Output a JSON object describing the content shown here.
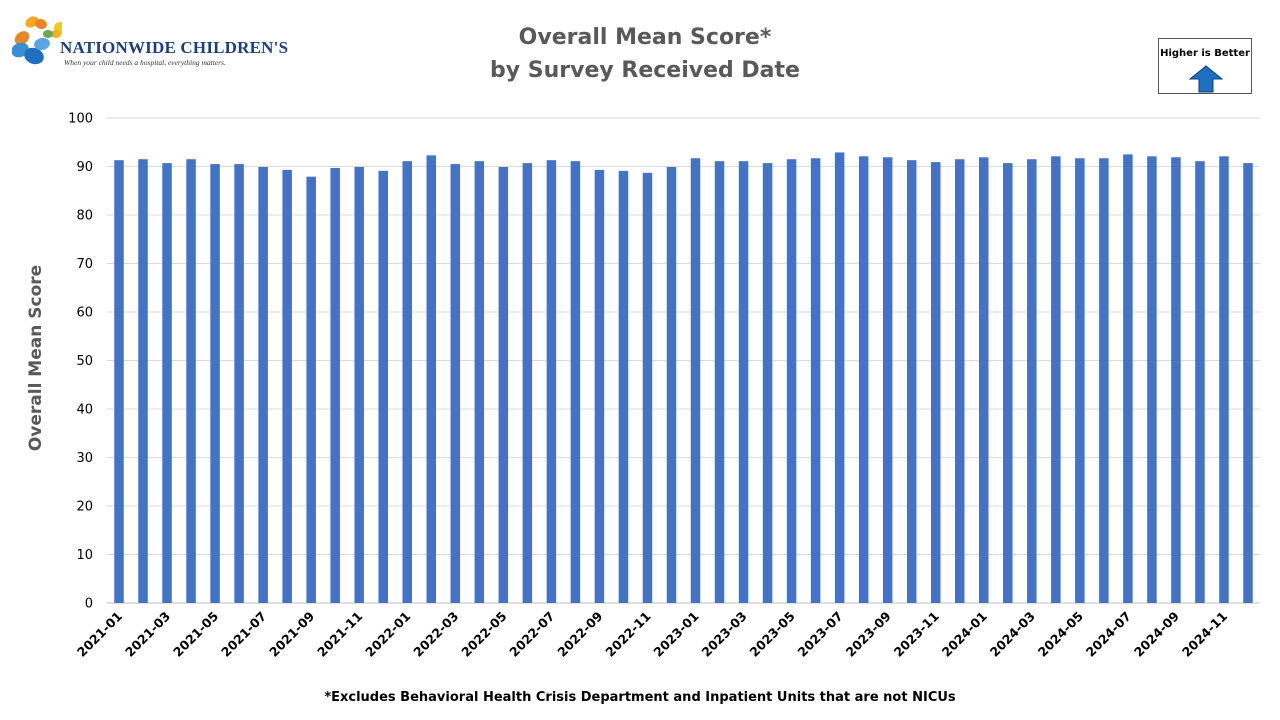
{
  "logo": {
    "name": "NATIONWIDE CHILDREN'S",
    "tagline": "When your child needs a hospital, everything matters."
  },
  "badge": {
    "label": "Higher is Better",
    "arrow_color": "#1f6fc0"
  },
  "footnote": "*Excludes Behavioral Health Crisis Department and Inpatient Units that are not NICUs",
  "chart_data": {
    "type": "bar",
    "title": "Overall Mean Score*",
    "subtitle": "by Survey Received Date",
    "xlabel": "",
    "ylabel": "Overall Mean Score",
    "ylim": [
      0,
      100
    ],
    "yticks": [
      0,
      10,
      20,
      30,
      40,
      50,
      60,
      70,
      80,
      90,
      100
    ],
    "grid": true,
    "bar_color": "#4472c4",
    "categories": [
      "2021-01",
      "2021-02",
      "2021-03",
      "2021-04",
      "2021-05",
      "2021-06",
      "2021-07",
      "2021-08",
      "2021-09",
      "2021-10",
      "2021-11",
      "2021-12",
      "2022-01",
      "2022-02",
      "2022-03",
      "2022-04",
      "2022-05",
      "2022-06",
      "2022-07",
      "2022-08",
      "2022-09",
      "2022-10",
      "2022-11",
      "2022-12",
      "2023-01",
      "2023-02",
      "2023-03",
      "2023-04",
      "2023-05",
      "2023-06",
      "2023-07",
      "2023-08",
      "2023-09",
      "2023-10",
      "2023-11",
      "2023-12",
      "2024-01",
      "2024-02",
      "2024-03",
      "2024-04",
      "2024-05",
      "2024-06",
      "2024-07",
      "2024-08",
      "2024-09",
      "2024-10",
      "2024-11",
      "2024-12"
    ],
    "tick_labels": [
      "2021-01",
      "2021-03",
      "2021-05",
      "2021-07",
      "2021-09",
      "2021-11",
      "2022-01",
      "2022-03",
      "2022-05",
      "2022-07",
      "2022-09",
      "2022-11",
      "2023-01",
      "2023-03",
      "2023-05",
      "2023-07",
      "2023-09",
      "2023-11",
      "2024-01",
      "2024-03",
      "2024-05",
      "2024-07",
      "2024-09",
      "2024-11"
    ],
    "values": [
      91.3,
      91.5,
      90.7,
      91.5,
      90.5,
      90.5,
      89.9,
      89.3,
      87.9,
      89.7,
      89.9,
      89.1,
      91.1,
      92.3,
      90.5,
      91.1,
      89.9,
      90.7,
      91.3,
      91.1,
      89.3,
      89.1,
      88.7,
      89.9,
      91.7,
      91.1,
      91.1,
      90.7,
      91.5,
      91.7,
      92.9,
      92.1,
      91.9,
      91.3,
      90.9,
      91.5,
      91.9,
      90.7,
      91.5,
      92.1,
      91.7,
      91.7,
      92.5,
      92.1,
      91.9,
      91.1,
      92.1,
      90.7
    ]
  }
}
